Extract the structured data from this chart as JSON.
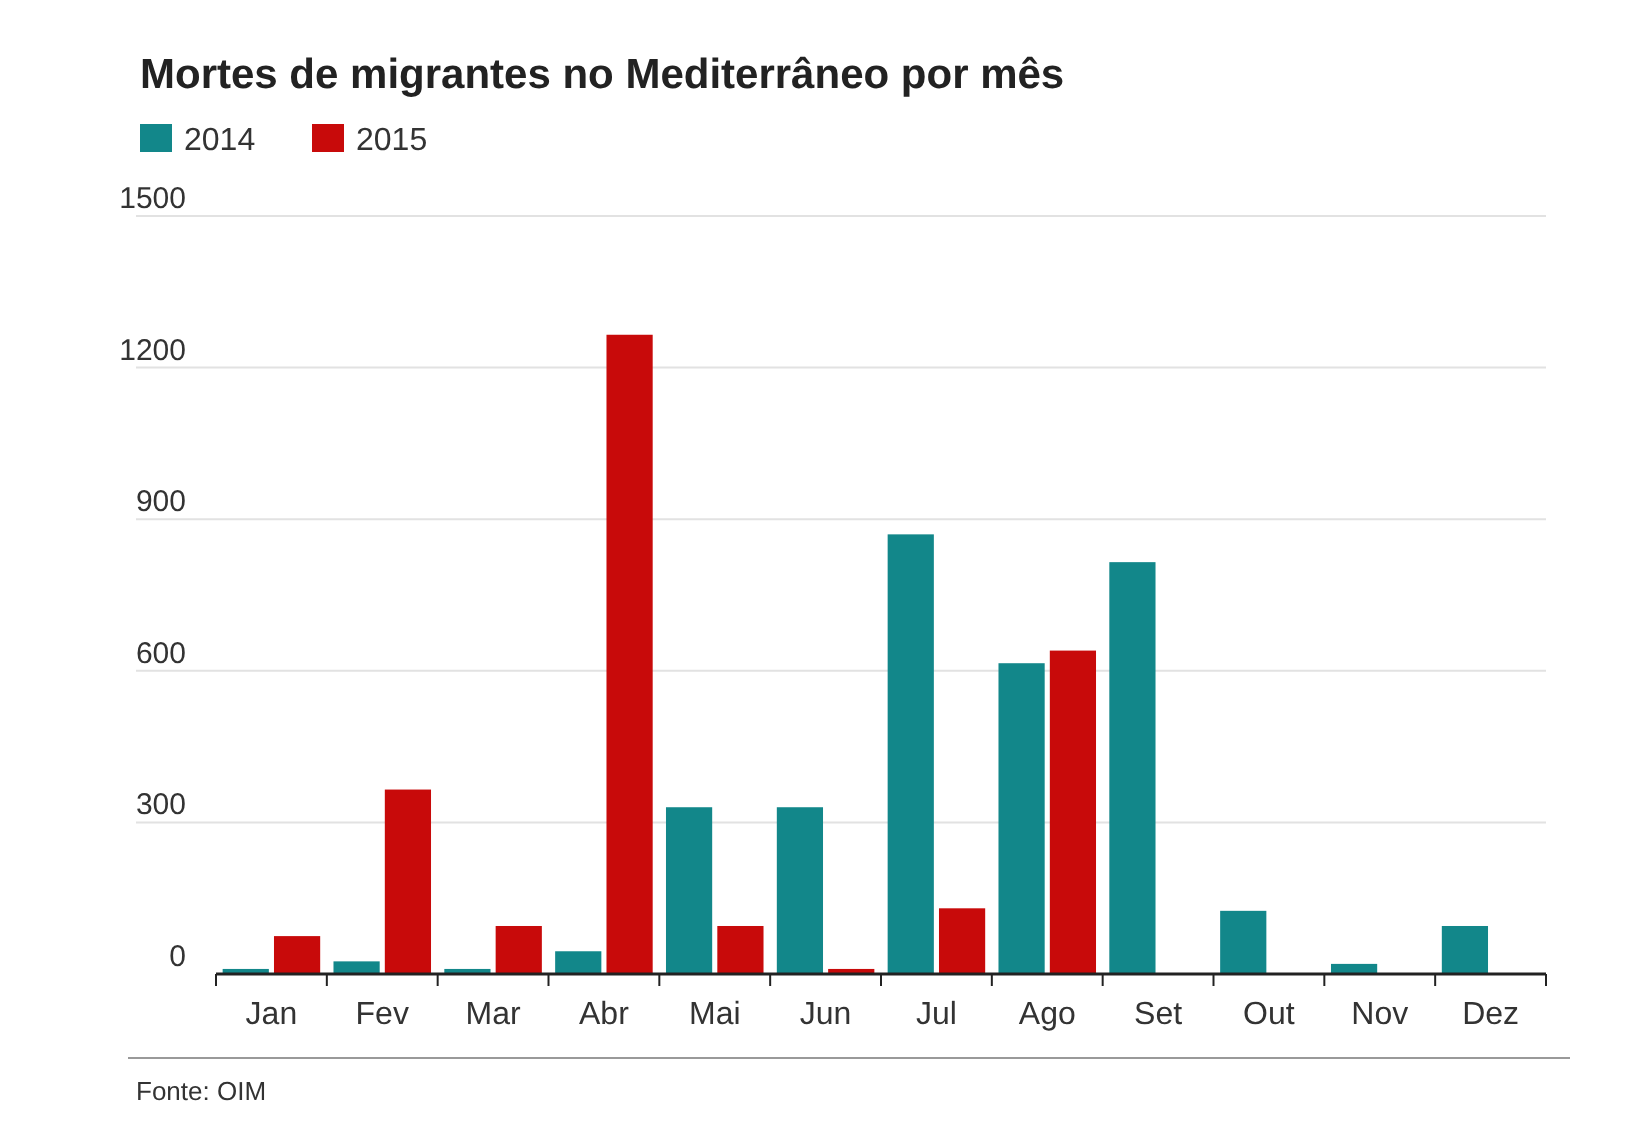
{
  "chart_data": {
    "type": "bar",
    "title": "Mortes de migrantes no Mediterrâneo por mês",
    "categories": [
      "Jan",
      "Fev",
      "Mar",
      "Abr",
      "Mai",
      "Jun",
      "Jul",
      "Ago",
      "Set",
      "Out",
      "Nov",
      "Dez"
    ],
    "series": [
      {
        "name": "2014",
        "color": "#12878a",
        "values": [
          10,
          25,
          10,
          45,
          330,
          330,
          870,
          615,
          815,
          125,
          20,
          95
        ]
      },
      {
        "name": "2015",
        "color": "#c80a0a",
        "values": [
          75,
          365,
          95,
          1265,
          95,
          10,
          130,
          640,
          null,
          null,
          null,
          null
        ]
      }
    ],
    "ylim": [
      0,
      1500
    ],
    "yticks": [
      0,
      300,
      600,
      900,
      1200,
      1500
    ],
    "grid": "y",
    "legend": "top left",
    "annotations": [
      "Fonte: OIM"
    ]
  }
}
